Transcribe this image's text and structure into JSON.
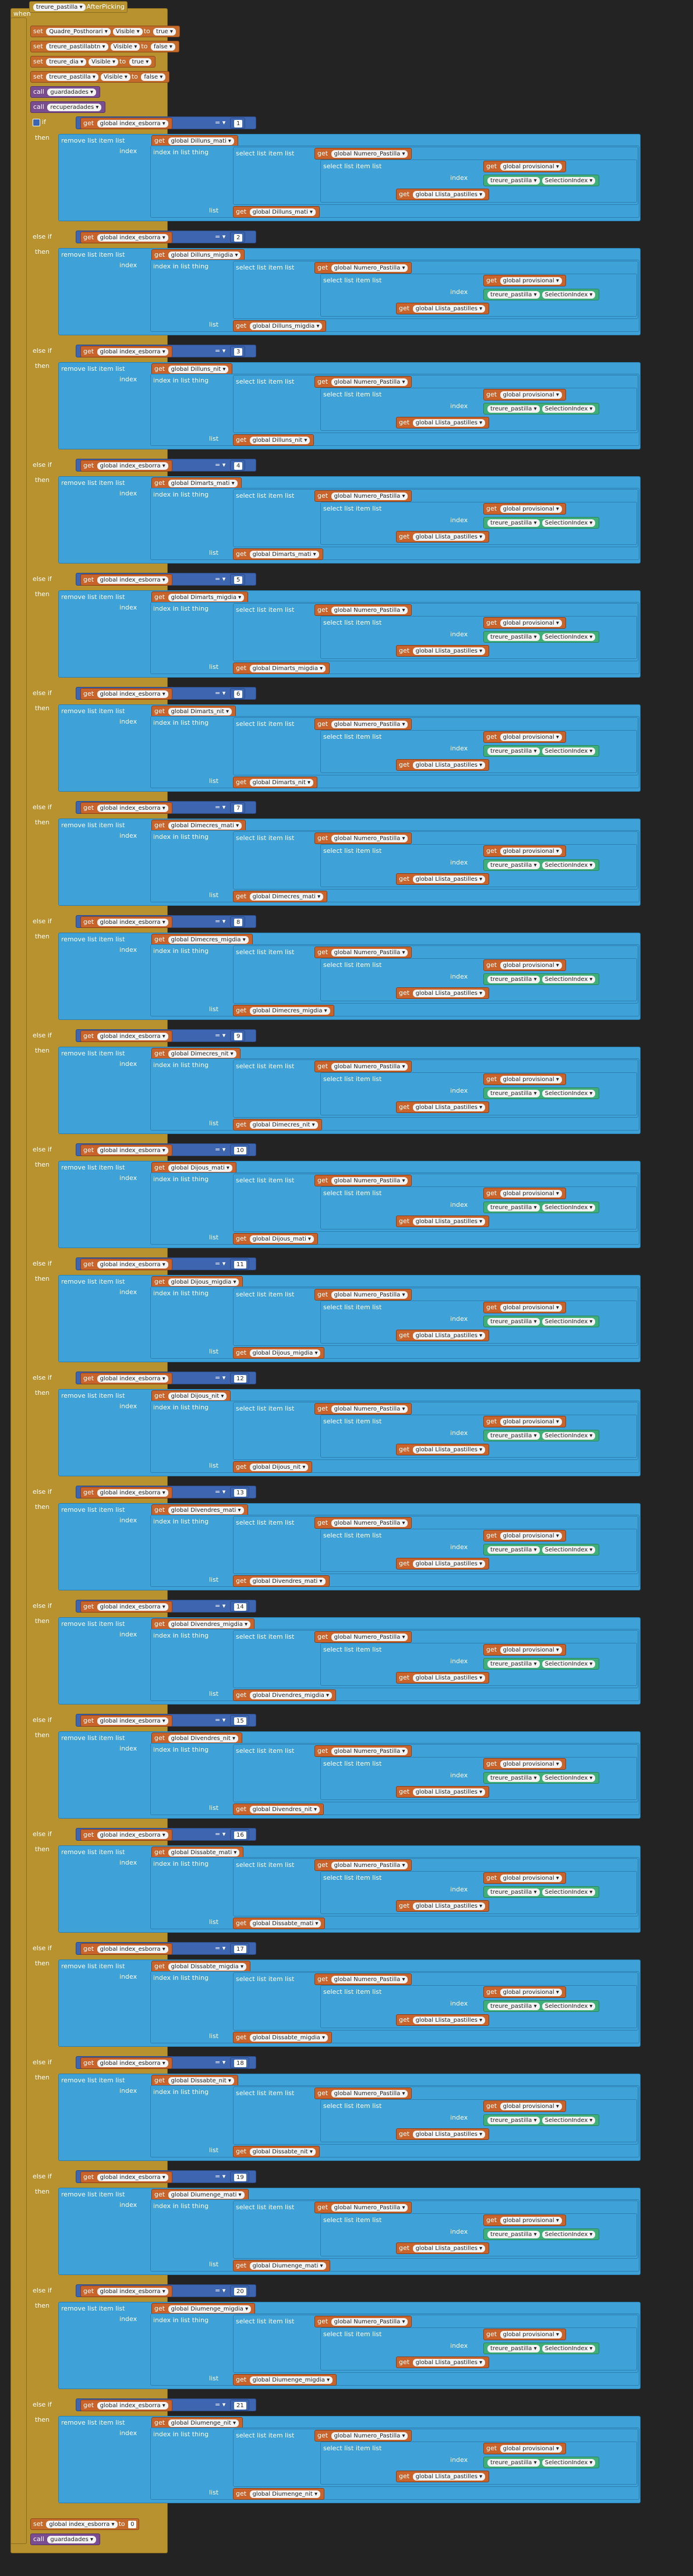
{
  "event": {
    "when": "when",
    "component": "treure_pastilla",
    "event": "AfterPicking",
    "do": "do"
  },
  "words": {
    "set": "set",
    "to": "to",
    "call": "call",
    "if": "if",
    "then": "then",
    "else_if": "else if",
    "get": "get",
    "remove": "remove list item  list",
    "index": "index",
    "index_in_list": "index in list  thing",
    "select": "select list item  list",
    "list": "list",
    "eq": "= ▾"
  },
  "set_blocks": [
    {
      "component": "Quadre_Posthorari",
      "property": "Visible",
      "value": "true"
    },
    {
      "component": "treure_pastillabtn",
      "property": "Visible",
      "value": "false"
    },
    {
      "component": "treure_dia",
      "property": "Visible",
      "value": "true"
    },
    {
      "component": "treure_pastilla",
      "property": "Visible",
      "value": "false"
    }
  ],
  "calls": [
    "guardadades",
    "recuperadades"
  ],
  "shared": {
    "index_var": "global index_esborra",
    "numero": "global Numero_Pastilla",
    "provisional": "global provisional",
    "llista": "global Llista_pastilles",
    "component": "treure_pastilla",
    "prop": "SelectionIndex"
  },
  "branches": [
    {
      "n": "1",
      "list": "global Dilluns_mati"
    },
    {
      "n": "2",
      "list": "global Dilluns_migdia"
    },
    {
      "n": "3",
      "list": "global Dilluns_nit"
    },
    {
      "n": "4",
      "list": "global Dimarts_mati"
    },
    {
      "n": "5",
      "list": "global Dimarts_migdia"
    },
    {
      "n": "6",
      "list": "global Dimarts_nit"
    },
    {
      "n": "7",
      "list": "global Dimecres_mati"
    },
    {
      "n": "8",
      "list": "global Dimecres_migdia"
    },
    {
      "n": "9",
      "list": "global Dimecres_nit"
    },
    {
      "n": "10",
      "list": "global Dijous_mati"
    },
    {
      "n": "11",
      "list": "global Dijous_migdia"
    },
    {
      "n": "12",
      "list": "global Dijous_nit"
    },
    {
      "n": "13",
      "list": "global Divendres_mati"
    },
    {
      "n": "14",
      "list": "global Divendres_migdia"
    },
    {
      "n": "15",
      "list": "global Divendres_nit"
    },
    {
      "n": "16",
      "list": "global Dissabte_mati"
    },
    {
      "n": "17",
      "list": "global Dissabte_migdia"
    },
    {
      "n": "18",
      "list": "global Dissabte_nit"
    },
    {
      "n": "19",
      "list": "global Diumenge_mati"
    },
    {
      "n": "20",
      "list": "global Diumenge_migdia"
    },
    {
      "n": "21",
      "list": "global Diumenge_nit"
    }
  ],
  "footer": {
    "set_var": "global index_esborra",
    "value": "0",
    "call": "guardadades"
  }
}
